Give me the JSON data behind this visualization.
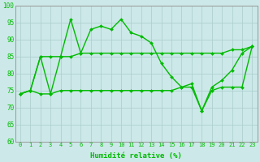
{
  "series": {
    "top": [
      74,
      75,
      85,
      74,
      85,
      96,
      86,
      93,
      94,
      93,
      96,
      92,
      91,
      89,
      83,
      79,
      76,
      77,
      69,
      76,
      78,
      81,
      86,
      88
    ],
    "mid": [
      74,
      75,
      85,
      85,
      85,
      85,
      86,
      86,
      86,
      86,
      86,
      86,
      86,
      86,
      86,
      86,
      86,
      86,
      86,
      86,
      86,
      87,
      87,
      88
    ],
    "bot": [
      74,
      75,
      74,
      74,
      75,
      75,
      75,
      75,
      75,
      75,
      75,
      75,
      75,
      75,
      75,
      75,
      76,
      76,
      69,
      75,
      76,
      76,
      76,
      88
    ]
  },
  "x": [
    0,
    1,
    2,
    3,
    4,
    5,
    6,
    7,
    8,
    9,
    10,
    11,
    12,
    13,
    14,
    15,
    16,
    17,
    18,
    19,
    20,
    21,
    22,
    23
  ],
  "ylim": [
    60,
    100
  ],
  "xlim_min": -0.5,
  "xlim_max": 23.5,
  "xlabel": "Humidité relative (%)",
  "bg_color": "#cce8e8",
  "grid_color": "#aacccc",
  "line_color": "#00bb00",
  "markersize": 2.0,
  "linewidth": 1.0,
  "yticks": [
    60,
    65,
    70,
    75,
    80,
    85,
    90,
    95,
    100
  ],
  "xticks": [
    0,
    1,
    2,
    3,
    4,
    5,
    6,
    7,
    8,
    9,
    10,
    11,
    12,
    13,
    14,
    15,
    16,
    17,
    18,
    19,
    20,
    21,
    22,
    23
  ],
  "xlabel_fontsize": 6.5,
  "tick_fontsize": 5.0,
  "ytick_fontsize": 5.5
}
